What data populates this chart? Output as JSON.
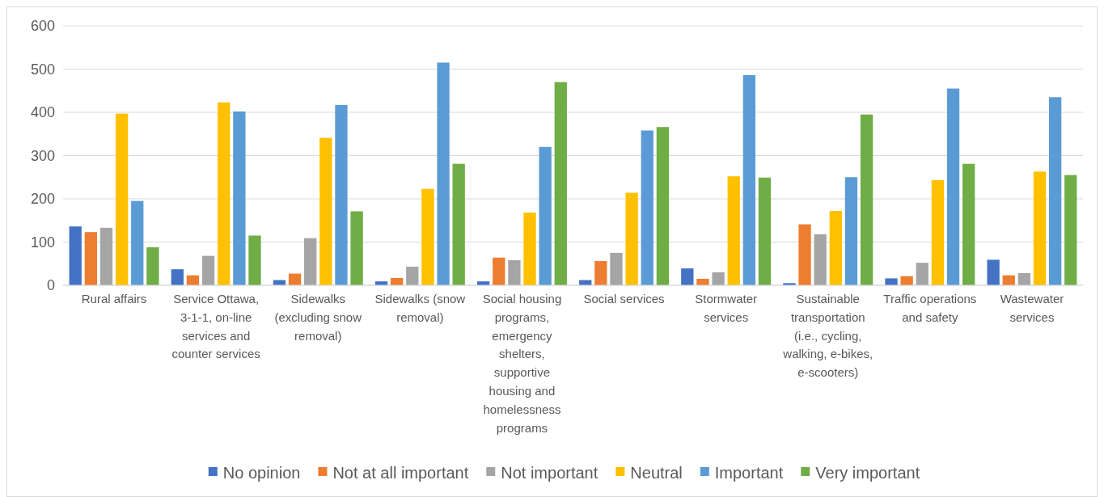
{
  "chart_data": {
    "type": "bar",
    "categories": [
      "Rural affairs",
      "Service Ottawa, 3-1-1, on-line services and counter services",
      "Sidewalks (excluding snow removal)",
      "Sidewalks (snow removal)",
      "Social housing programs, emergency shelters, supportive housing and homelessness programs",
      "Social services",
      "Stormwater services",
      "Sustainable transportation (i.e., cycling, walking, e-bikes, e-scooters)",
      "Traffic operations and safety",
      "Wastewater services"
    ],
    "series": [
      {
        "name": "No opinion",
        "color": "#4472c4",
        "values": [
          136,
          37,
          12,
          9,
          9,
          12,
          39,
          5,
          16,
          59
        ]
      },
      {
        "name": "Not at all important",
        "color": "#ed7d31",
        "values": [
          123,
          23,
          27,
          17,
          64,
          56,
          15,
          141,
          21,
          23
        ]
      },
      {
        "name": "Not important",
        "color": "#a5a5a5",
        "values": [
          133,
          68,
          109,
          43,
          58,
          75,
          30,
          118,
          52,
          28
        ]
      },
      {
        "name": "Neutral",
        "color": "#ffc000",
        "values": [
          397,
          423,
          341,
          223,
          168,
          214,
          252,
          172,
          243,
          263
        ]
      },
      {
        "name": "Important",
        "color": "#5b9bd5",
        "values": [
          195,
          402,
          417,
          515,
          320,
          358,
          486,
          250,
          455,
          435
        ]
      },
      {
        "name": "Very important",
        "color": "#70ad47",
        "values": [
          88,
          115,
          171,
          281,
          470,
          366,
          249,
          395,
          281,
          255
        ]
      }
    ],
    "ylim": [
      0,
      600
    ],
    "yticks": [
      0,
      100,
      200,
      300,
      400,
      500,
      600
    ],
    "grid": "y",
    "legend": "bottom"
  }
}
